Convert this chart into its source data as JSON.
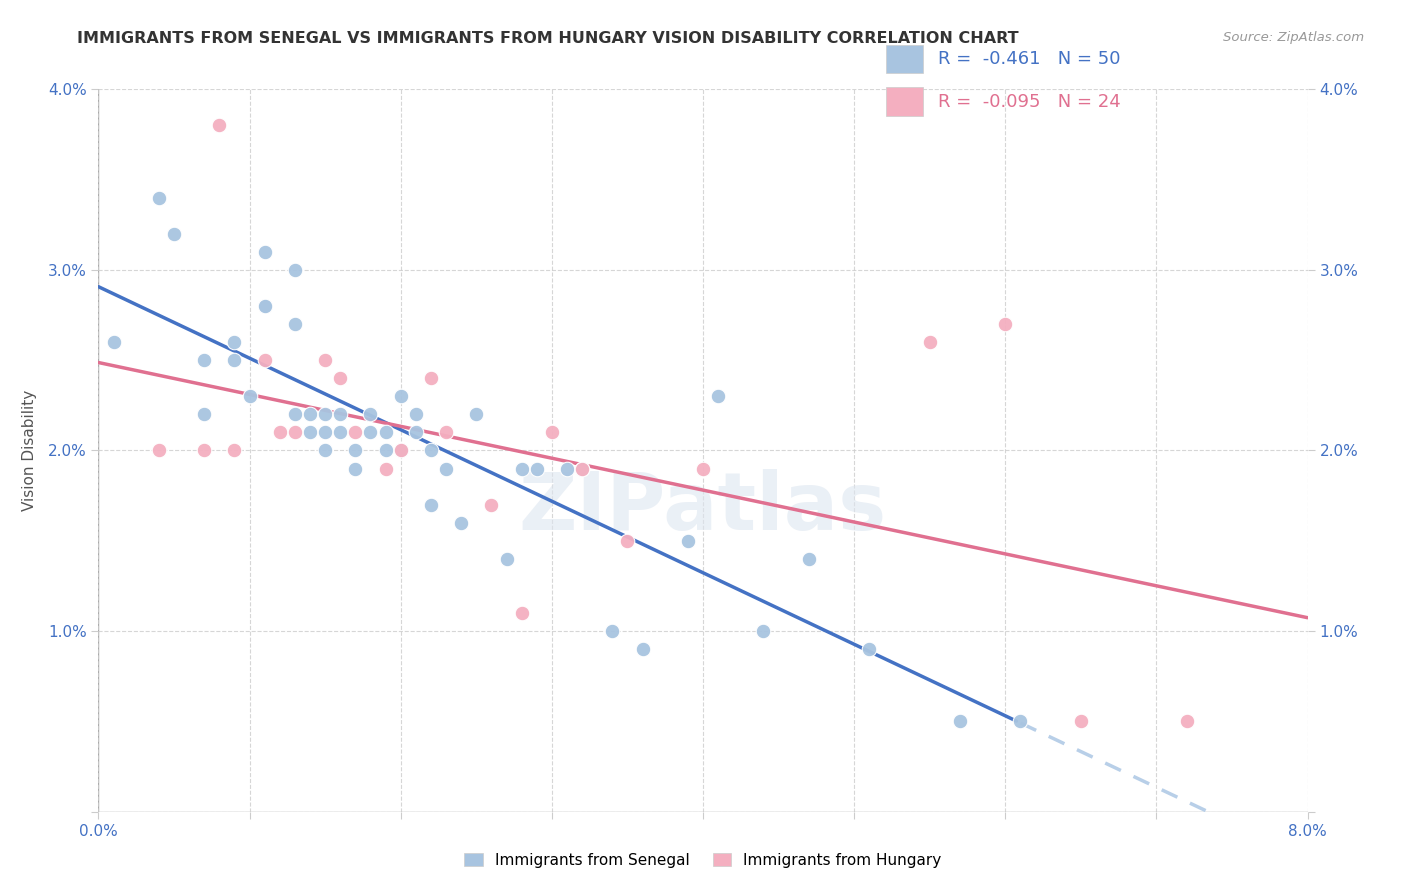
{
  "title": "IMMIGRANTS FROM SENEGAL VS IMMIGRANTS FROM HUNGARY VISION DISABILITY CORRELATION CHART",
  "source": "Source: ZipAtlas.com",
  "ylabel": "Vision Disability",
  "xlim": [
    0.0,
    0.08
  ],
  "ylim": [
    0.0,
    0.04
  ],
  "legend1_label": "Immigrants from Senegal",
  "legend2_label": "Immigrants from Hungary",
  "R1": "-0.461",
  "N1": "50",
  "R2": "-0.095",
  "N2": "24",
  "color1": "#a8c4e0",
  "color2": "#f4afc0",
  "line1_color": "#4472c4",
  "line2_color": "#e07090",
  "line1_dashed_color": "#b8cfe8",
  "watermark": "ZIPatlas",
  "senegal_x": [
    0.001,
    0.004,
    0.005,
    0.007,
    0.007,
    0.009,
    0.009,
    0.01,
    0.011,
    0.011,
    0.011,
    0.013,
    0.013,
    0.013,
    0.014,
    0.014,
    0.015,
    0.015,
    0.015,
    0.016,
    0.016,
    0.017,
    0.017,
    0.018,
    0.018,
    0.019,
    0.019,
    0.02,
    0.02,
    0.021,
    0.021,
    0.022,
    0.022,
    0.023,
    0.024,
    0.025,
    0.027,
    0.028,
    0.029,
    0.031,
    0.032,
    0.034,
    0.036,
    0.039,
    0.041,
    0.044,
    0.047,
    0.051,
    0.057,
    0.061
  ],
  "senegal_y": [
    0.026,
    0.034,
    0.032,
    0.025,
    0.022,
    0.026,
    0.025,
    0.023,
    0.031,
    0.028,
    0.028,
    0.03,
    0.027,
    0.022,
    0.022,
    0.021,
    0.022,
    0.021,
    0.02,
    0.022,
    0.021,
    0.02,
    0.019,
    0.022,
    0.021,
    0.02,
    0.021,
    0.023,
    0.02,
    0.022,
    0.021,
    0.02,
    0.017,
    0.019,
    0.016,
    0.022,
    0.014,
    0.019,
    0.019,
    0.019,
    0.019,
    0.01,
    0.009,
    0.015,
    0.023,
    0.01,
    0.014,
    0.009,
    0.005,
    0.005
  ],
  "hungary_x": [
    0.004,
    0.007,
    0.008,
    0.009,
    0.011,
    0.012,
    0.013,
    0.015,
    0.016,
    0.017,
    0.019,
    0.02,
    0.022,
    0.023,
    0.026,
    0.028,
    0.03,
    0.032,
    0.035,
    0.04,
    0.055,
    0.06,
    0.065,
    0.072
  ],
  "hungary_y": [
    0.02,
    0.02,
    0.038,
    0.02,
    0.025,
    0.021,
    0.021,
    0.025,
    0.024,
    0.021,
    0.019,
    0.02,
    0.024,
    0.021,
    0.017,
    0.011,
    0.021,
    0.019,
    0.015,
    0.019,
    0.026,
    0.027,
    0.005,
    0.005
  ]
}
